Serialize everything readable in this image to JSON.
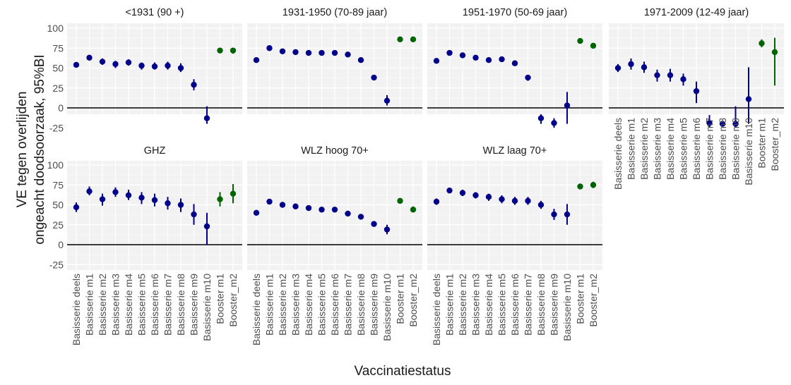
{
  "figure": {
    "ylabel": "VE tegen overlijden\nongeacht doodsoorzaak, 95%BI",
    "xlabel": "Vaccinatiestatus",
    "colors": {
      "basis": "#00008B",
      "booster": "#006400",
      "panel_bg": "#f2f2f2",
      "zero_line": "#000000",
      "text": "#4d4d4d"
    }
  },
  "chart_data": {
    "type": "scatter",
    "subtype": "faceted point-range",
    "categories": [
      "Basisserie deels",
      "Basisserie m1",
      "Basisserie m2",
      "Basisserie m3",
      "Basisserie m4",
      "Basisserie m5",
      "Basisserie m6",
      "Basisserie m7",
      "Basisserie m8",
      "Basisserie m9",
      "Basisserie m10",
      "Booster m1",
      "Booster_m2"
    ],
    "yticks": [
      100,
      75,
      50,
      25,
      0,
      -25
    ],
    "ytick_labels": [
      "100",
      "75",
      "50",
      "25",
      "0",
      "-25"
    ],
    "ylim": [
      -30,
      102
    ],
    "reference_line": 0,
    "grid": true,
    "booster_categories": [
      "Booster m1",
      "Booster_m2"
    ],
    "panels": [
      {
        "title": "<1931 (90 +)",
        "est": [
          54,
          63,
          58,
          55,
          57,
          53,
          52,
          53,
          50,
          29,
          -13,
          72,
          72
        ],
        "lo": [
          52,
          60,
          54,
          50,
          53,
          48,
          48,
          48,
          45,
          22,
          -20,
          69,
          68
        ],
        "hi": [
          56,
          66,
          62,
          59,
          61,
          57,
          57,
          58,
          56,
          36,
          2,
          74,
          75
        ]
      },
      {
        "title": "1931-1950 (70-89 jaar)",
        "est": [
          60,
          75,
          71,
          70,
          69,
          69,
          69,
          67,
          60,
          38,
          9,
          86,
          86
        ],
        "lo": [
          59,
          74,
          70,
          69,
          68,
          68,
          68,
          66,
          59,
          36,
          3,
          85,
          85
        ],
        "hi": [
          61,
          76,
          72,
          71,
          70,
          70,
          70,
          68,
          61,
          40,
          16,
          87,
          87
        ]
      },
      {
        "title": "1951-1970 (50-69 jaar)",
        "est": [
          59,
          69,
          66,
          63,
          60,
          61,
          56,
          38,
          -13,
          -19,
          3,
          84,
          78
        ],
        "lo": [
          58,
          68,
          65,
          62,
          59,
          60,
          55,
          34,
          -20,
          -25,
          -20,
          83,
          75
        ],
        "hi": [
          60,
          70,
          67,
          64,
          61,
          62,
          57,
          41,
          -8,
          -13,
          20,
          85,
          81
        ]
      },
      {
        "title": "1971-2009 (12-49 jaar)",
        "est": [
          50,
          55,
          51,
          41,
          41,
          36,
          21,
          -19,
          -20,
          -20,
          11,
          81,
          70
        ],
        "lo": [
          45,
          48,
          44,
          33,
          33,
          28,
          6,
          -25,
          -22,
          -25,
          -20,
          76,
          28
        ],
        "hi": [
          55,
          62,
          58,
          48,
          49,
          43,
          33,
          -9,
          -18,
          2,
          51,
          86,
          88
        ]
      },
      {
        "title": "GHZ",
        "est": [
          47,
          67,
          57,
          66,
          62,
          59,
          56,
          52,
          50,
          38,
          23,
          57,
          64
        ],
        "lo": [
          41,
          62,
          49,
          60,
          56,
          51,
          48,
          44,
          41,
          25,
          0,
          48,
          52
        ],
        "hi": [
          53,
          73,
          64,
          72,
          69,
          66,
          64,
          60,
          58,
          51,
          40,
          66,
          76
        ]
      },
      {
        "title": "WLZ hoog 70+",
        "est": [
          40,
          54,
          50,
          48,
          46,
          44,
          44,
          39,
          35,
          26,
          19,
          55,
          44
        ],
        "lo": [
          39,
          53,
          49,
          47,
          45,
          43,
          43,
          38,
          34,
          23,
          13,
          54,
          41
        ],
        "hi": [
          41,
          55,
          51,
          49,
          47,
          45,
          45,
          40,
          36,
          29,
          25,
          56,
          48
        ]
      },
      {
        "title": "WLZ laag 70+",
        "est": [
          54,
          68,
          65,
          62,
          60,
          57,
          55,
          55,
          50,
          38,
          38,
          73,
          75
        ],
        "lo": [
          50,
          65,
          61,
          58,
          55,
          52,
          50,
          50,
          45,
          31,
          25,
          70,
          71
        ],
        "hi": [
          58,
          71,
          69,
          66,
          64,
          62,
          60,
          60,
          55,
          45,
          51,
          76,
          79
        ]
      }
    ]
  }
}
